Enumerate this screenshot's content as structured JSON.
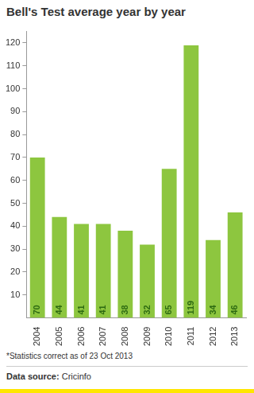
{
  "chart_data": {
    "type": "bar",
    "title": "Bell's Test average year by year",
    "categories": [
      "2004",
      "2005",
      "2006",
      "2007",
      "2008",
      "2009",
      "2010",
      "2011",
      "2012",
      "2013"
    ],
    "values": [
      70,
      44,
      41,
      41,
      38,
      32,
      65,
      119,
      34,
      46
    ],
    "color": "#8dc63f",
    "ylim": [
      0,
      125
    ],
    "yticks": [
      10,
      20,
      30,
      40,
      50,
      60,
      70,
      80,
      90,
      100,
      110,
      120
    ],
    "grid": false,
    "data_labels": true,
    "annotations": [
      "*Statistics correct as of 23 Oct 2013"
    ],
    "source": "Data source: Cricinfo"
  }
}
